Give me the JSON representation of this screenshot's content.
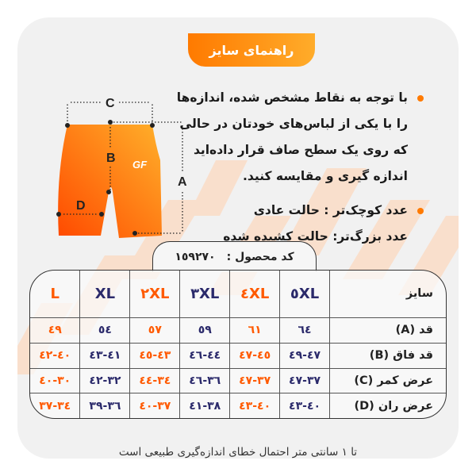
{
  "title": "راهنمای سایز",
  "colors": {
    "accent_orange": "#ff6a00",
    "navy": "#2b2a6b",
    "card_bg": "#f1f1f1",
    "stripe": "#fbdcc6"
  },
  "diagram": {
    "labels": [
      "A",
      "B",
      "C",
      "D"
    ],
    "logo": "GF"
  },
  "instructions": {
    "bullet1": [
      "با توجه به نقاط مشخص شده، اندازه‌ها",
      "را با یکی از لباس‌های خودتان در حالی",
      "که روی یک سطح صاف قرار داده‌اید",
      "اندازه گیری و مقایسه کنید."
    ],
    "bullet2": [
      "عدد کوچک‌تر : حالت عادی",
      "عدد بزرگ‌تر: حالت کشیده شده"
    ]
  },
  "product_code": {
    "label": "کد محصول :",
    "value": "١٥٩٢٧٠"
  },
  "table": {
    "header_label": "سایز",
    "sizes": [
      "٥XL",
      "٤XL",
      "٣XL",
      "٢XL",
      "XL",
      "L"
    ],
    "size_colors": [
      "#2b2a6b",
      "#ff5a00",
      "#2b2a6b",
      "#ff5a00",
      "#2b2a6b",
      "#ff5a00"
    ],
    "rows": [
      {
        "label": "قد (A)",
        "values": [
          "٦٤",
          "٦١",
          "٥٩",
          "٥٧",
          "٥٤",
          "٤٩"
        ]
      },
      {
        "label": "قد فاق (B)",
        "values": [
          "٤٧-٤٩",
          "٤٥-٤٧",
          "٤٤-٤٦",
          "٤٣-٤٥",
          "٤١-٤٣",
          "٤٠-٤٢"
        ]
      },
      {
        "label": "عرض کمر (C)",
        "values": [
          "٣٧-٤٧",
          "٣٧-٤٧",
          "٣٦-٤٦",
          "٣٤-٤٤",
          "٣٢-٤٢",
          "٣٠-٤٠"
        ]
      },
      {
        "label": "عرض ران (D)",
        "values": [
          "٤٠-٤٣",
          "٤٠-٤٣",
          "٣٨-٤١",
          "٣٧-٤٠",
          "٣٦-٣٩",
          "٣٤-٣٧"
        ]
      }
    ]
  },
  "footer": "تا ١ سانتی متر احتمال خطای اندازه‌گیری طبیعی است"
}
